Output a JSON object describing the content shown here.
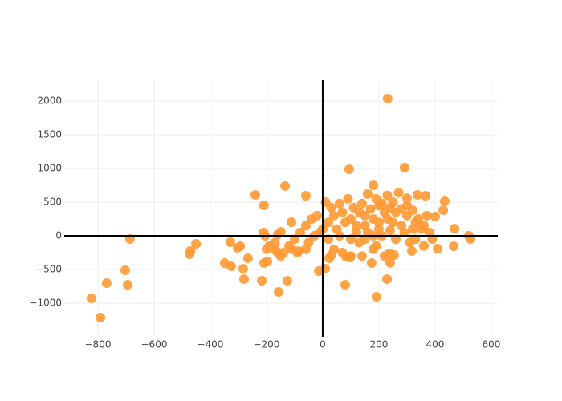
{
  "chart_data": {
    "type": "scatter",
    "color": "#ff9933",
    "grid": true,
    "zero_lines": true,
    "xlim": [
      -920,
      623
    ],
    "ylim": [
      -1500,
      2310
    ],
    "xticks": [
      {
        "value": -800,
        "label": "−800"
      },
      {
        "value": -600,
        "label": "−600"
      },
      {
        "value": -400,
        "label": "−400"
      },
      {
        "value": -200,
        "label": "−200"
      },
      0,
      200,
      400,
      600
    ],
    "yticks": [
      {
        "value": -1000,
        "label": "−1000"
      },
      {
        "value": -500,
        "label": "−500"
      },
      0,
      500,
      1000,
      1500,
      2000
    ],
    "x": [
      231,
      94,
      291,
      -823,
      -791,
      -769,
      -694,
      -703,
      -686,
      -451,
      -471,
      -474,
      -349,
      -326,
      -329,
      -294,
      -303,
      -283,
      -280,
      -266,
      -240,
      -209,
      -134,
      -60,
      -217,
      -209,
      -197,
      -157,
      -126,
      -111,
      -14,
      9,
      80,
      191,
      229,
      174,
      180,
      429,
      434,
      469,
      466,
      520,
      526,
      409,
      400,
      337,
      366,
      317,
      237,
      254,
      83,
      97,
      23,
      31,
      -163,
      -86,
      -149,
      50,
      80,
      120,
      150,
      180,
      200,
      220,
      250,
      280,
      300,
      320,
      100,
      130,
      160,
      190,
      210,
      240,
      260,
      290,
      310,
      330,
      350,
      370,
      200,
      230,
      250,
      270,
      300,
      160,
      140,
      110,
      90,
      60,
      30,
      10,
      -20,
      -40,
      -60,
      -80,
      -100,
      -120,
      -140,
      -150,
      -50,
      -30,
      0,
      20,
      40,
      70,
      100,
      130,
      170,
      190,
      210,
      240,
      260,
      280,
      300,
      320,
      340,
      360,
      380,
      390,
      330,
      360,
      40,
      70,
      100,
      140,
      180,
      220,
      240,
      120,
      150,
      200,
      230,
      180,
      150,
      60,
      20,
      -10,
      -60,
      -90,
      -110,
      -170,
      -200,
      -210,
      -205,
      -160,
      -190,
      -170
    ],
    "values": [
      2036,
      988,
      1012,
      -929,
      -1214,
      -702,
      -726,
      -512,
      -48,
      -119,
      -226,
      -274,
      -405,
      -452,
      -95,
      -155,
      -179,
      -488,
      -643,
      -333,
      607,
      452,
      738,
      595,
      -667,
      -405,
      -381,
      -833,
      -667,
      202,
      -524,
      -488,
      -726,
      -905,
      -643,
      -405,
      750,
      381,
      512,
      107,
      -155,
      0,
      -48,
      -190,
      286,
      607,
      595,
      -226,
      -262,
      -286,
      -310,
      -321,
      -333,
      -286,
      -238,
      -226,
      60,
      100,
      200,
      150,
      300,
      250,
      100,
      350,
      200,
      150,
      300,
      100,
      -50,
      -100,
      50,
      -150,
      0,
      80,
      -50,
      50,
      -100,
      200,
      100,
      300,
      450,
      600,
      500,
      640,
      560,
      620,
      480,
      420,
      550,
      480,
      420,
      500,
      300,
      250,
      150,
      50,
      -50,
      -150,
      -250,
      -300,
      -100,
      0,
      100,
      200,
      300,
      350,
      250,
      350,
      400,
      550,
      480,
      420,
      350,
      400,
      450,
      380,
      250,
      150,
      50,
      -50,
      -50,
      -150,
      -200,
      -250,
      -300,
      -300,
      -200,
      -300,
      -400,
      50,
      150,
      200,
      250,
      0,
      -50,
      0,
      -50,
      50,
      -200,
      -250,
      -200,
      -200,
      -200,
      50,
      0,
      20,
      -150,
      -100
    ]
  }
}
